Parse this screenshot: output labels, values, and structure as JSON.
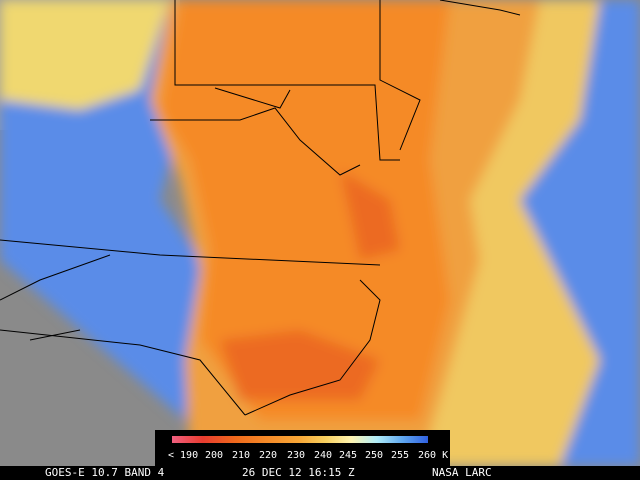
{
  "colorbar": {
    "labels": [
      "< 190",
      "200",
      "210",
      "220",
      "230",
      "240",
      "245",
      "250",
      "255",
      "260 K"
    ]
  },
  "footer": {
    "satellite": "GOES-E 10.7 BAND 4",
    "time": "26 DEC 12 16:15 Z",
    "credit": "NASA LARC"
  }
}
